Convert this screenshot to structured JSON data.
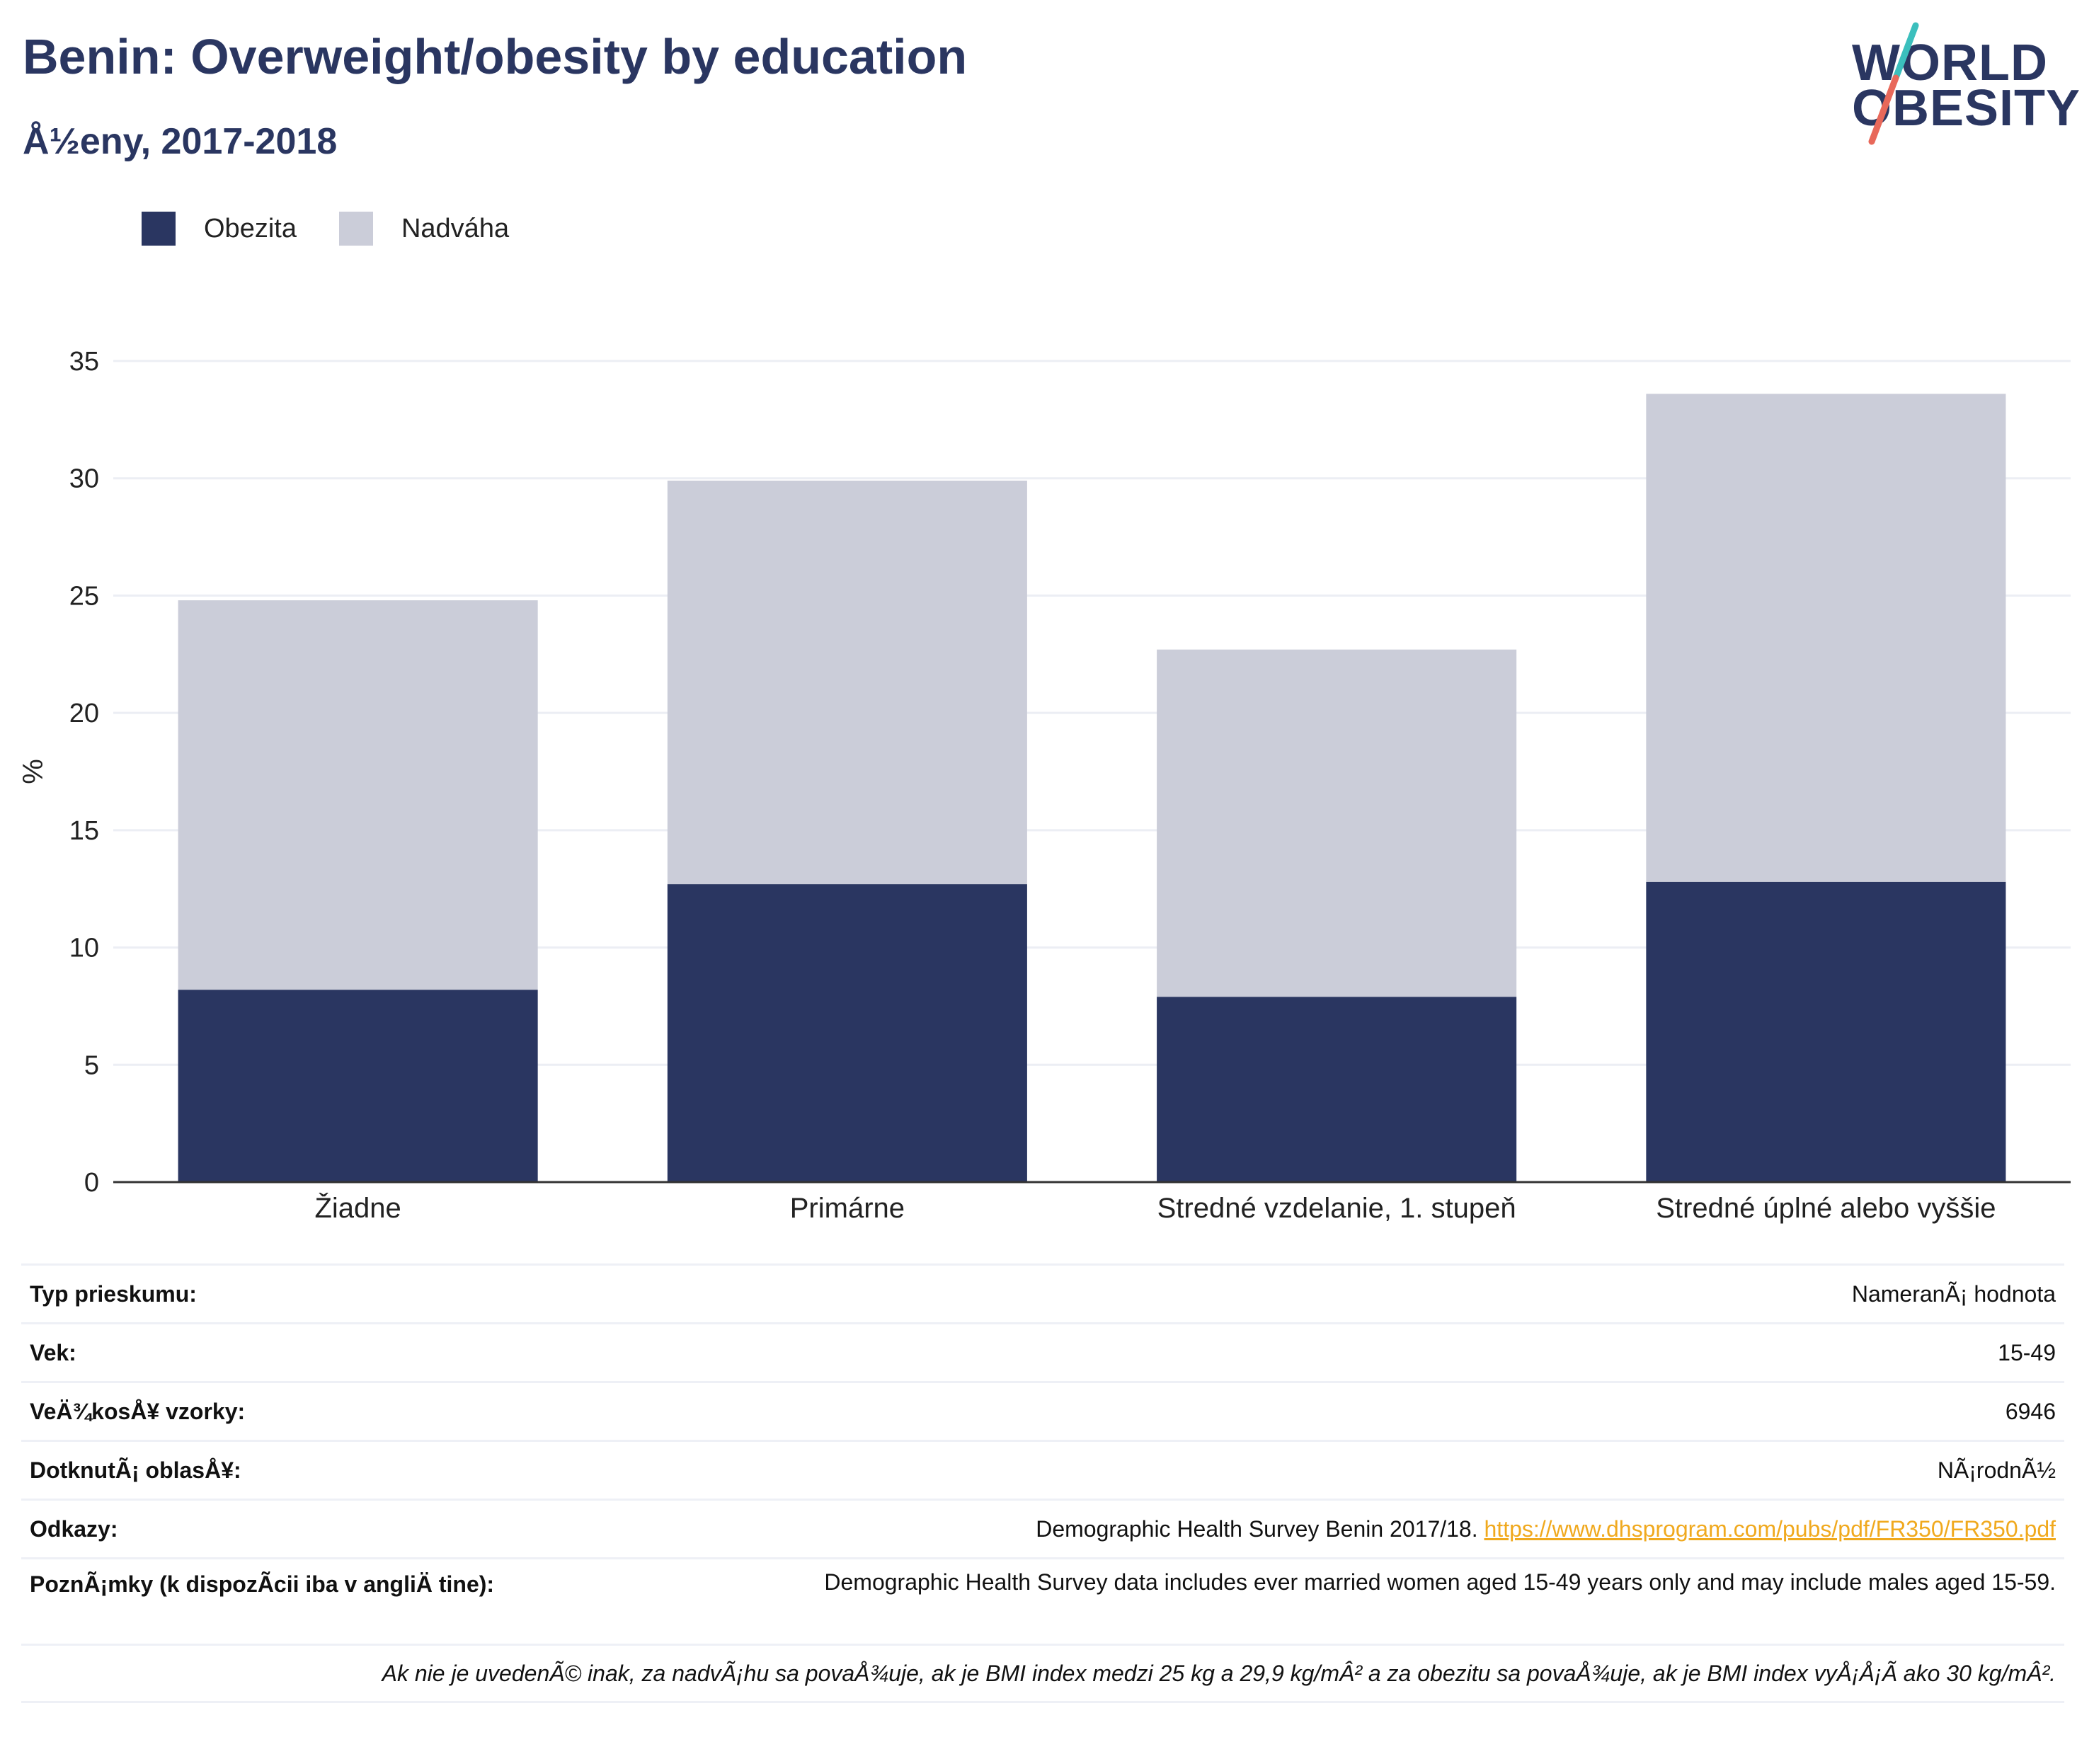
{
  "header": {
    "title": "Benin: Overweight/obesity by education",
    "subtitle": "Å½eny, 2017-2018"
  },
  "logo": {
    "line1": "WORLD",
    "line2": "OBESITY"
  },
  "colors": {
    "obesity": "#2a3661",
    "overweight": "#cbcdd9",
    "accent_teal": "#3bbfbd",
    "accent_red": "#e8685a",
    "link": "#f0a91e"
  },
  "chart_data": {
    "type": "bar",
    "stacked": true,
    "categories": [
      "Žiadne",
      "Primárne",
      "Stredné vzdelanie, 1. stupeň",
      "Stredné úplné alebo vyššie"
    ],
    "series": [
      {
        "name": "Obezita",
        "values": [
          8.2,
          12.7,
          7.9,
          12.8
        ]
      },
      {
        "name": "Nadváha",
        "values": [
          16.6,
          17.2,
          14.8,
          20.8
        ]
      }
    ],
    "ylabel": "%",
    "ylim": [
      0,
      35
    ],
    "yticks": [
      0,
      5,
      10,
      15,
      20,
      25,
      30,
      35
    ],
    "grid": true,
    "legend_position": "top-left"
  },
  "info": {
    "rows": [
      {
        "key": "Typ prieskumu:",
        "value": "NameranÃ¡ hodnota"
      },
      {
        "key": "Vek:",
        "value": "15-49"
      },
      {
        "key": "VeÄ¾kosÅ¥ vzorky:",
        "value": "6946"
      },
      {
        "key": "DotknutÃ¡ oblasÅ¥:",
        "value": "NÃ¡rodnÃ½"
      }
    ],
    "references_key": "Odkazy:",
    "references_text": "Demographic Health Survey Benin 2017/18. ",
    "references_link": "https://www.dhsprogram.com/pubs/pdf/FR350/FR350.pdf",
    "notes_key": "PoznÃ¡mky (k dispozÃcii iba v angliÄ tine):",
    "notes_value": "Demographic Health Survey data includes ever married women aged 15-49 years only and may include males aged 15-59.",
    "footnote": "Ak nie je uvedenÃ© inak, za nadvÃ¡hu sa povaÅ¾uje, ak je BMI index medzi 25 kg a 29,9 kg/mÂ² a za obezitu sa povaÅ¾uje, ak je BMI index vyÅ¡Å¡Ã ako 30 kg/mÂ²."
  }
}
